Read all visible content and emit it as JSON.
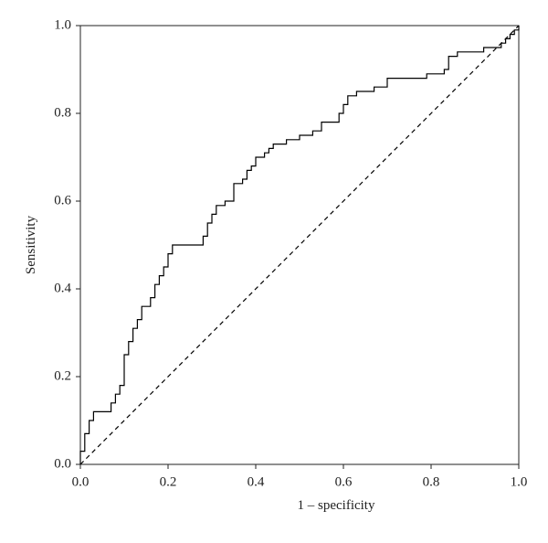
{
  "chart_data": {
    "type": "line",
    "xlabel": "1 – specificity",
    "ylabel": "Sensitivity",
    "xlim": [
      0,
      1
    ],
    "ylim": [
      0,
      1
    ],
    "xticks": [
      {
        "value": 0,
        "label": "0.0"
      },
      {
        "value": 0.2,
        "label": "0.2"
      },
      {
        "value": 0.4,
        "label": "0.4"
      },
      {
        "value": 0.6,
        "label": "0.6"
      },
      {
        "value": 0.8,
        "label": "0.8"
      },
      {
        "value": 1,
        "label": "1.0"
      }
    ],
    "yticks": [
      {
        "value": 0,
        "label": "0.0"
      },
      {
        "value": 0.2,
        "label": "0.2"
      },
      {
        "value": 0.4,
        "label": "0.4"
      },
      {
        "value": 0.6,
        "label": "0.6"
      },
      {
        "value": 0.8,
        "label": "0.8"
      },
      {
        "value": 1,
        "label": "1.0"
      }
    ],
    "grid": false,
    "series": [
      {
        "color": "#000000",
        "style": "solid",
        "x": [
          0,
          0,
          0.01,
          0.01,
          0.02,
          0.02,
          0.03,
          0.03,
          0.07,
          0.07,
          0.08,
          0.08,
          0.09,
          0.09,
          0.1,
          0.1,
          0.11,
          0.11,
          0.12,
          0.12,
          0.13,
          0.13,
          0.14,
          0.14,
          0.16,
          0.16,
          0.17,
          0.17,
          0.18,
          0.18,
          0.19,
          0.19,
          0.2,
          0.2,
          0.21,
          0.21,
          0.28,
          0.28,
          0.29,
          0.29,
          0.3,
          0.3,
          0.31,
          0.31,
          0.33,
          0.33,
          0.35,
          0.35,
          0.37,
          0.37,
          0.38,
          0.38,
          0.39,
          0.39,
          0.4,
          0.4,
          0.42,
          0.42,
          0.43,
          0.43,
          0.44,
          0.44,
          0.47,
          0.47,
          0.5,
          0.5,
          0.53,
          0.53,
          0.55,
          0.55,
          0.59,
          0.59,
          0.6,
          0.6,
          0.61,
          0.61,
          0.63,
          0.63,
          0.67,
          0.67,
          0.7,
          0.7,
          0.79,
          0.79,
          0.83,
          0.83,
          0.84,
          0.84,
          0.86,
          0.86,
          0.92,
          0.92,
          0.96,
          0.96,
          0.97,
          0.97,
          0.98,
          0.98,
          0.99,
          0.99,
          1,
          1
        ],
        "values": [
          0,
          0.03,
          0.03,
          0.07,
          0.07,
          0.1,
          0.1,
          0.12,
          0.12,
          0.14,
          0.14,
          0.16,
          0.16,
          0.18,
          0.18,
          0.25,
          0.25,
          0.28,
          0.28,
          0.31,
          0.31,
          0.33,
          0.33,
          0.36,
          0.36,
          0.38,
          0.38,
          0.41,
          0.41,
          0.43,
          0.43,
          0.45,
          0.45,
          0.48,
          0.48,
          0.5,
          0.5,
          0.52,
          0.52,
          0.55,
          0.55,
          0.57,
          0.57,
          0.59,
          0.59,
          0.6,
          0.6,
          0.64,
          0.64,
          0.65,
          0.65,
          0.67,
          0.67,
          0.68,
          0.68,
          0.7,
          0.7,
          0.71,
          0.71,
          0.72,
          0.72,
          0.73,
          0.73,
          0.74,
          0.74,
          0.75,
          0.75,
          0.76,
          0.76,
          0.78,
          0.78,
          0.8,
          0.8,
          0.82,
          0.82,
          0.84,
          0.84,
          0.85,
          0.85,
          0.86,
          0.86,
          0.88,
          0.88,
          0.89,
          0.89,
          0.9,
          0.9,
          0.93,
          0.93,
          0.94,
          0.94,
          0.95,
          0.95,
          0.96,
          0.96,
          0.97,
          0.97,
          0.98,
          0.98,
          0.99,
          0.99,
          1
        ]
      },
      {
        "color": "#000000",
        "style": "dashed",
        "x": [
          0,
          1
        ],
        "values": [
          0,
          1
        ]
      }
    ]
  }
}
